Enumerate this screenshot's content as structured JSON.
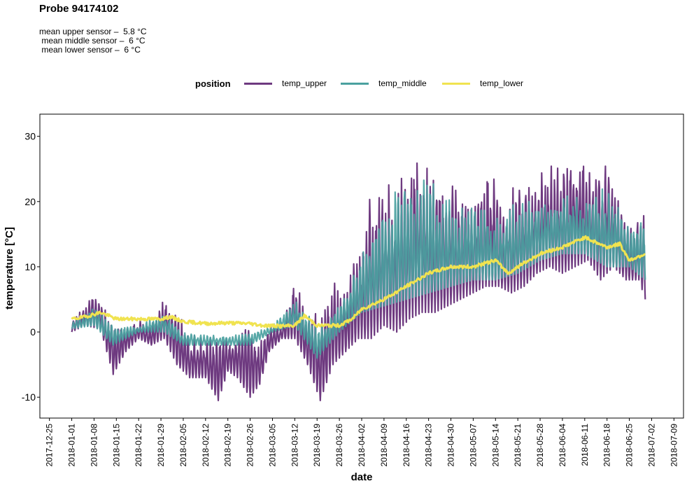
{
  "header": {
    "title": "Probe 94174102",
    "subtitle_lines": [
      "mean upper sensor –  5.8 °C",
      " mean middle sensor –  6 °C",
      " mean lower sensor –  6 °C"
    ]
  },
  "legend": {
    "title": "position",
    "items": [
      {
        "label": "temp_upper",
        "color": "#6e3a80"
      },
      {
        "label": "temp_middle",
        "color": "#4aa19f"
      },
      {
        "label": "temp_lower",
        "color": "#f0e350"
      }
    ]
  },
  "chart_data": {
    "type": "line",
    "xlabel": "date",
    "ylabel": "temperature [°C]",
    "xlim": [
      "2017-12-22",
      "2018-07-12"
    ],
    "ylim": [
      -13.2,
      33.4
    ],
    "x_ticks": [
      "2017-12-25",
      "2018-01-01",
      "2018-01-08",
      "2018-01-15",
      "2018-01-22",
      "2018-01-29",
      "2018-02-05",
      "2018-02-12",
      "2018-02-19",
      "2018-02-26",
      "2018-03-05",
      "2018-03-12",
      "2018-03-19",
      "2018-03-26",
      "2018-04-02",
      "2018-04-09",
      "2018-04-16",
      "2018-04-23",
      "2018-04-30",
      "2018-05-07",
      "2018-05-14",
      "2018-05-21",
      "2018-05-28",
      "2018-06-04",
      "2018-06-11",
      "2018-06-18",
      "2018-06-25",
      "2018-07-02",
      "2018-07-09"
    ],
    "y_ticks": [
      -10,
      0,
      10,
      20,
      30
    ],
    "grid": false,
    "legend_position": "top",
    "series": [
      {
        "name": "temp_upper",
        "color": "#6e3a80",
        "daily_min": [
          [
            "2018-01-01",
            0.0
          ],
          [
            "2018-01-05",
            1.0
          ],
          [
            "2018-01-10",
            0.5
          ],
          [
            "2018-01-14",
            -6.5
          ],
          [
            "2018-01-18",
            -3.0
          ],
          [
            "2018-01-22",
            -1.0
          ],
          [
            "2018-01-26",
            -2.0
          ],
          [
            "2018-01-30",
            -1.0
          ],
          [
            "2018-02-03",
            -5.0
          ],
          [
            "2018-02-07",
            -7.0
          ],
          [
            "2018-02-12",
            -7.0
          ],
          [
            "2018-02-16",
            -10.5
          ],
          [
            "2018-02-19",
            -6.0
          ],
          [
            "2018-02-22",
            -7.0
          ],
          [
            "2018-02-26",
            -10.0
          ],
          [
            "2018-03-01",
            -8.0
          ],
          [
            "2018-03-04",
            -3.0
          ],
          [
            "2018-03-08",
            -1.0
          ],
          [
            "2018-03-12",
            -1.0
          ],
          [
            "2018-03-16",
            -5.0
          ],
          [
            "2018-03-20",
            -10.5
          ],
          [
            "2018-03-24",
            -5.0
          ],
          [
            "2018-03-28",
            -3.0
          ],
          [
            "2018-04-01",
            -1.0
          ],
          [
            "2018-04-05",
            -1.0
          ],
          [
            "2018-04-09",
            1.0
          ],
          [
            "2018-04-13",
            0.0
          ],
          [
            "2018-04-17",
            2.0
          ],
          [
            "2018-04-21",
            3.0
          ],
          [
            "2018-04-25",
            3.0
          ],
          [
            "2018-04-29",
            4.0
          ],
          [
            "2018-05-03",
            5.0
          ],
          [
            "2018-05-07",
            6.0
          ],
          [
            "2018-05-11",
            7.0
          ],
          [
            "2018-05-15",
            7.0
          ],
          [
            "2018-05-19",
            6.0
          ],
          [
            "2018-05-23",
            7.0
          ],
          [
            "2018-05-27",
            9.0
          ],
          [
            "2018-05-31",
            10.0
          ],
          [
            "2018-06-04",
            9.0
          ],
          [
            "2018-06-08",
            10.0
          ],
          [
            "2018-06-12",
            11.0
          ],
          [
            "2018-06-16",
            8.0
          ],
          [
            "2018-06-20",
            10.0
          ],
          [
            "2018-06-24",
            8.0
          ],
          [
            "2018-06-28",
            8.0
          ],
          [
            "2018-06-30",
            5.0
          ]
        ],
        "daily_max": [
          [
            "2018-01-01",
            2.0
          ],
          [
            "2018-01-05",
            4.0
          ],
          [
            "2018-01-08",
            6.5
          ],
          [
            "2018-01-12",
            3.0
          ],
          [
            "2018-01-18",
            1.0
          ],
          [
            "2018-01-22",
            2.0
          ],
          [
            "2018-01-26",
            1.0
          ],
          [
            "2018-01-30",
            6.0
          ],
          [
            "2018-02-03",
            3.0
          ],
          [
            "2018-02-07",
            0.0
          ],
          [
            "2018-02-12",
            -1.0
          ],
          [
            "2018-02-16",
            1.0
          ],
          [
            "2018-02-19",
            -1.0
          ],
          [
            "2018-02-22",
            1.0
          ],
          [
            "2018-02-26",
            1.0
          ],
          [
            "2018-03-01",
            -1.0
          ],
          [
            "2018-03-04",
            1.0
          ],
          [
            "2018-03-08",
            1.0
          ],
          [
            "2018-03-12",
            9.0
          ],
          [
            "2018-03-16",
            3.0
          ],
          [
            "2018-03-20",
            3.0
          ],
          [
            "2018-03-24",
            8.0
          ],
          [
            "2018-03-28",
            6.0
          ],
          [
            "2018-04-01",
            14.0
          ],
          [
            "2018-04-04",
            20.0
          ],
          [
            "2018-04-08",
            23.0
          ],
          [
            "2018-04-12",
            24.0
          ],
          [
            "2018-04-16",
            28.0
          ],
          [
            "2018-04-19",
            31.5
          ],
          [
            "2018-04-22",
            26.0
          ],
          [
            "2018-04-26",
            25.0
          ],
          [
            "2018-04-30",
            23.0
          ],
          [
            "2018-05-04",
            22.0
          ],
          [
            "2018-05-08",
            22.0
          ],
          [
            "2018-05-12",
            27.0
          ],
          [
            "2018-05-16",
            20.0
          ],
          [
            "2018-05-20",
            24.0
          ],
          [
            "2018-05-24",
            22.0
          ],
          [
            "2018-05-28",
            26.0
          ],
          [
            "2018-06-01",
            26.0
          ],
          [
            "2018-06-05",
            27.0
          ],
          [
            "2018-06-10",
            29.5
          ],
          [
            "2018-06-14",
            24.0
          ],
          [
            "2018-06-18",
            27.5
          ],
          [
            "2018-06-22",
            20.0
          ],
          [
            "2018-06-26",
            16.0
          ],
          [
            "2018-06-30",
            22.0
          ]
        ]
      },
      {
        "name": "temp_middle",
        "color": "#4aa19f",
        "daily_min": [
          [
            "2018-01-01",
            0.5
          ],
          [
            "2018-01-08",
            1.0
          ],
          [
            "2018-01-14",
            -2.0
          ],
          [
            "2018-01-22",
            0.0
          ],
          [
            "2018-01-30",
            0.0
          ],
          [
            "2018-02-05",
            -2.0
          ],
          [
            "2018-02-12",
            -2.0
          ],
          [
            "2018-02-19",
            -2.0
          ],
          [
            "2018-02-26",
            -2.0
          ],
          [
            "2018-03-05",
            0.0
          ],
          [
            "2018-03-12",
            1.0
          ],
          [
            "2018-03-19",
            -4.0
          ],
          [
            "2018-03-26",
            0.0
          ],
          [
            "2018-04-02",
            3.0
          ],
          [
            "2018-04-09",
            4.0
          ],
          [
            "2018-04-16",
            5.0
          ],
          [
            "2018-04-23",
            6.0
          ],
          [
            "2018-04-30",
            7.0
          ],
          [
            "2018-05-07",
            8.0
          ],
          [
            "2018-05-14",
            8.0
          ],
          [
            "2018-05-21",
            9.0
          ],
          [
            "2018-05-28",
            11.0
          ],
          [
            "2018-06-04",
            12.0
          ],
          [
            "2018-06-11",
            12.0
          ],
          [
            "2018-06-18",
            10.0
          ],
          [
            "2018-06-25",
            10.0
          ],
          [
            "2018-06-30",
            8.0
          ]
        ],
        "daily_max": [
          [
            "2018-01-01",
            1.5
          ],
          [
            "2018-01-08",
            4.0
          ],
          [
            "2018-01-14",
            1.0
          ],
          [
            "2018-01-22",
            1.0
          ],
          [
            "2018-01-30",
            3.0
          ],
          [
            "2018-02-05",
            0.0
          ],
          [
            "2018-02-12",
            -0.5
          ],
          [
            "2018-02-19",
            -0.5
          ],
          [
            "2018-02-26",
            0.0
          ],
          [
            "2018-03-05",
            1.0
          ],
          [
            "2018-03-12",
            5.0
          ],
          [
            "2018-03-19",
            1.0
          ],
          [
            "2018-03-26",
            4.0
          ],
          [
            "2018-04-02",
            12.0
          ],
          [
            "2018-04-09",
            20.0
          ],
          [
            "2018-04-16",
            24.0
          ],
          [
            "2018-04-23",
            24.0
          ],
          [
            "2018-04-30",
            20.0
          ],
          [
            "2018-05-07",
            20.0
          ],
          [
            "2018-05-14",
            18.0
          ],
          [
            "2018-05-21",
            20.0
          ],
          [
            "2018-05-28",
            20.0
          ],
          [
            "2018-06-04",
            22.0
          ],
          [
            "2018-06-11",
            20.0
          ],
          [
            "2018-06-18",
            23.0
          ],
          [
            "2018-06-25",
            16.0
          ],
          [
            "2018-06-30",
            19.0
          ]
        ]
      },
      {
        "name": "temp_lower",
        "color": "#f0e350",
        "values": [
          [
            "2018-01-01",
            2.0
          ],
          [
            "2018-01-05",
            2.3
          ],
          [
            "2018-01-10",
            3.0
          ],
          [
            "2018-01-15",
            2.0
          ],
          [
            "2018-01-22",
            2.0
          ],
          [
            "2018-01-29",
            2.0
          ],
          [
            "2018-02-01",
            2.3
          ],
          [
            "2018-02-05",
            1.6
          ],
          [
            "2018-02-12",
            1.3
          ],
          [
            "2018-02-19",
            1.4
          ],
          [
            "2018-02-26",
            1.3
          ],
          [
            "2018-03-02",
            1.0
          ],
          [
            "2018-03-09",
            0.9
          ],
          [
            "2018-03-12",
            1.0
          ],
          [
            "2018-03-15",
            2.5
          ],
          [
            "2018-03-19",
            1.0
          ],
          [
            "2018-03-26",
            1.0
          ],
          [
            "2018-03-30",
            2.0
          ],
          [
            "2018-04-02",
            3.5
          ],
          [
            "2018-04-09",
            5.0
          ],
          [
            "2018-04-16",
            7.0
          ],
          [
            "2018-04-23",
            9.0
          ],
          [
            "2018-04-30",
            10.0
          ],
          [
            "2018-05-07",
            10.0
          ],
          [
            "2018-05-14",
            11.0
          ],
          [
            "2018-05-18",
            9.0
          ],
          [
            "2018-05-21",
            10.0
          ],
          [
            "2018-05-28",
            12.0
          ],
          [
            "2018-06-04",
            13.0
          ],
          [
            "2018-06-11",
            14.5
          ],
          [
            "2018-06-18",
            13.0
          ],
          [
            "2018-06-22",
            13.5
          ],
          [
            "2018-06-25",
            11.0
          ],
          [
            "2018-06-30",
            12.0
          ]
        ]
      }
    ]
  }
}
